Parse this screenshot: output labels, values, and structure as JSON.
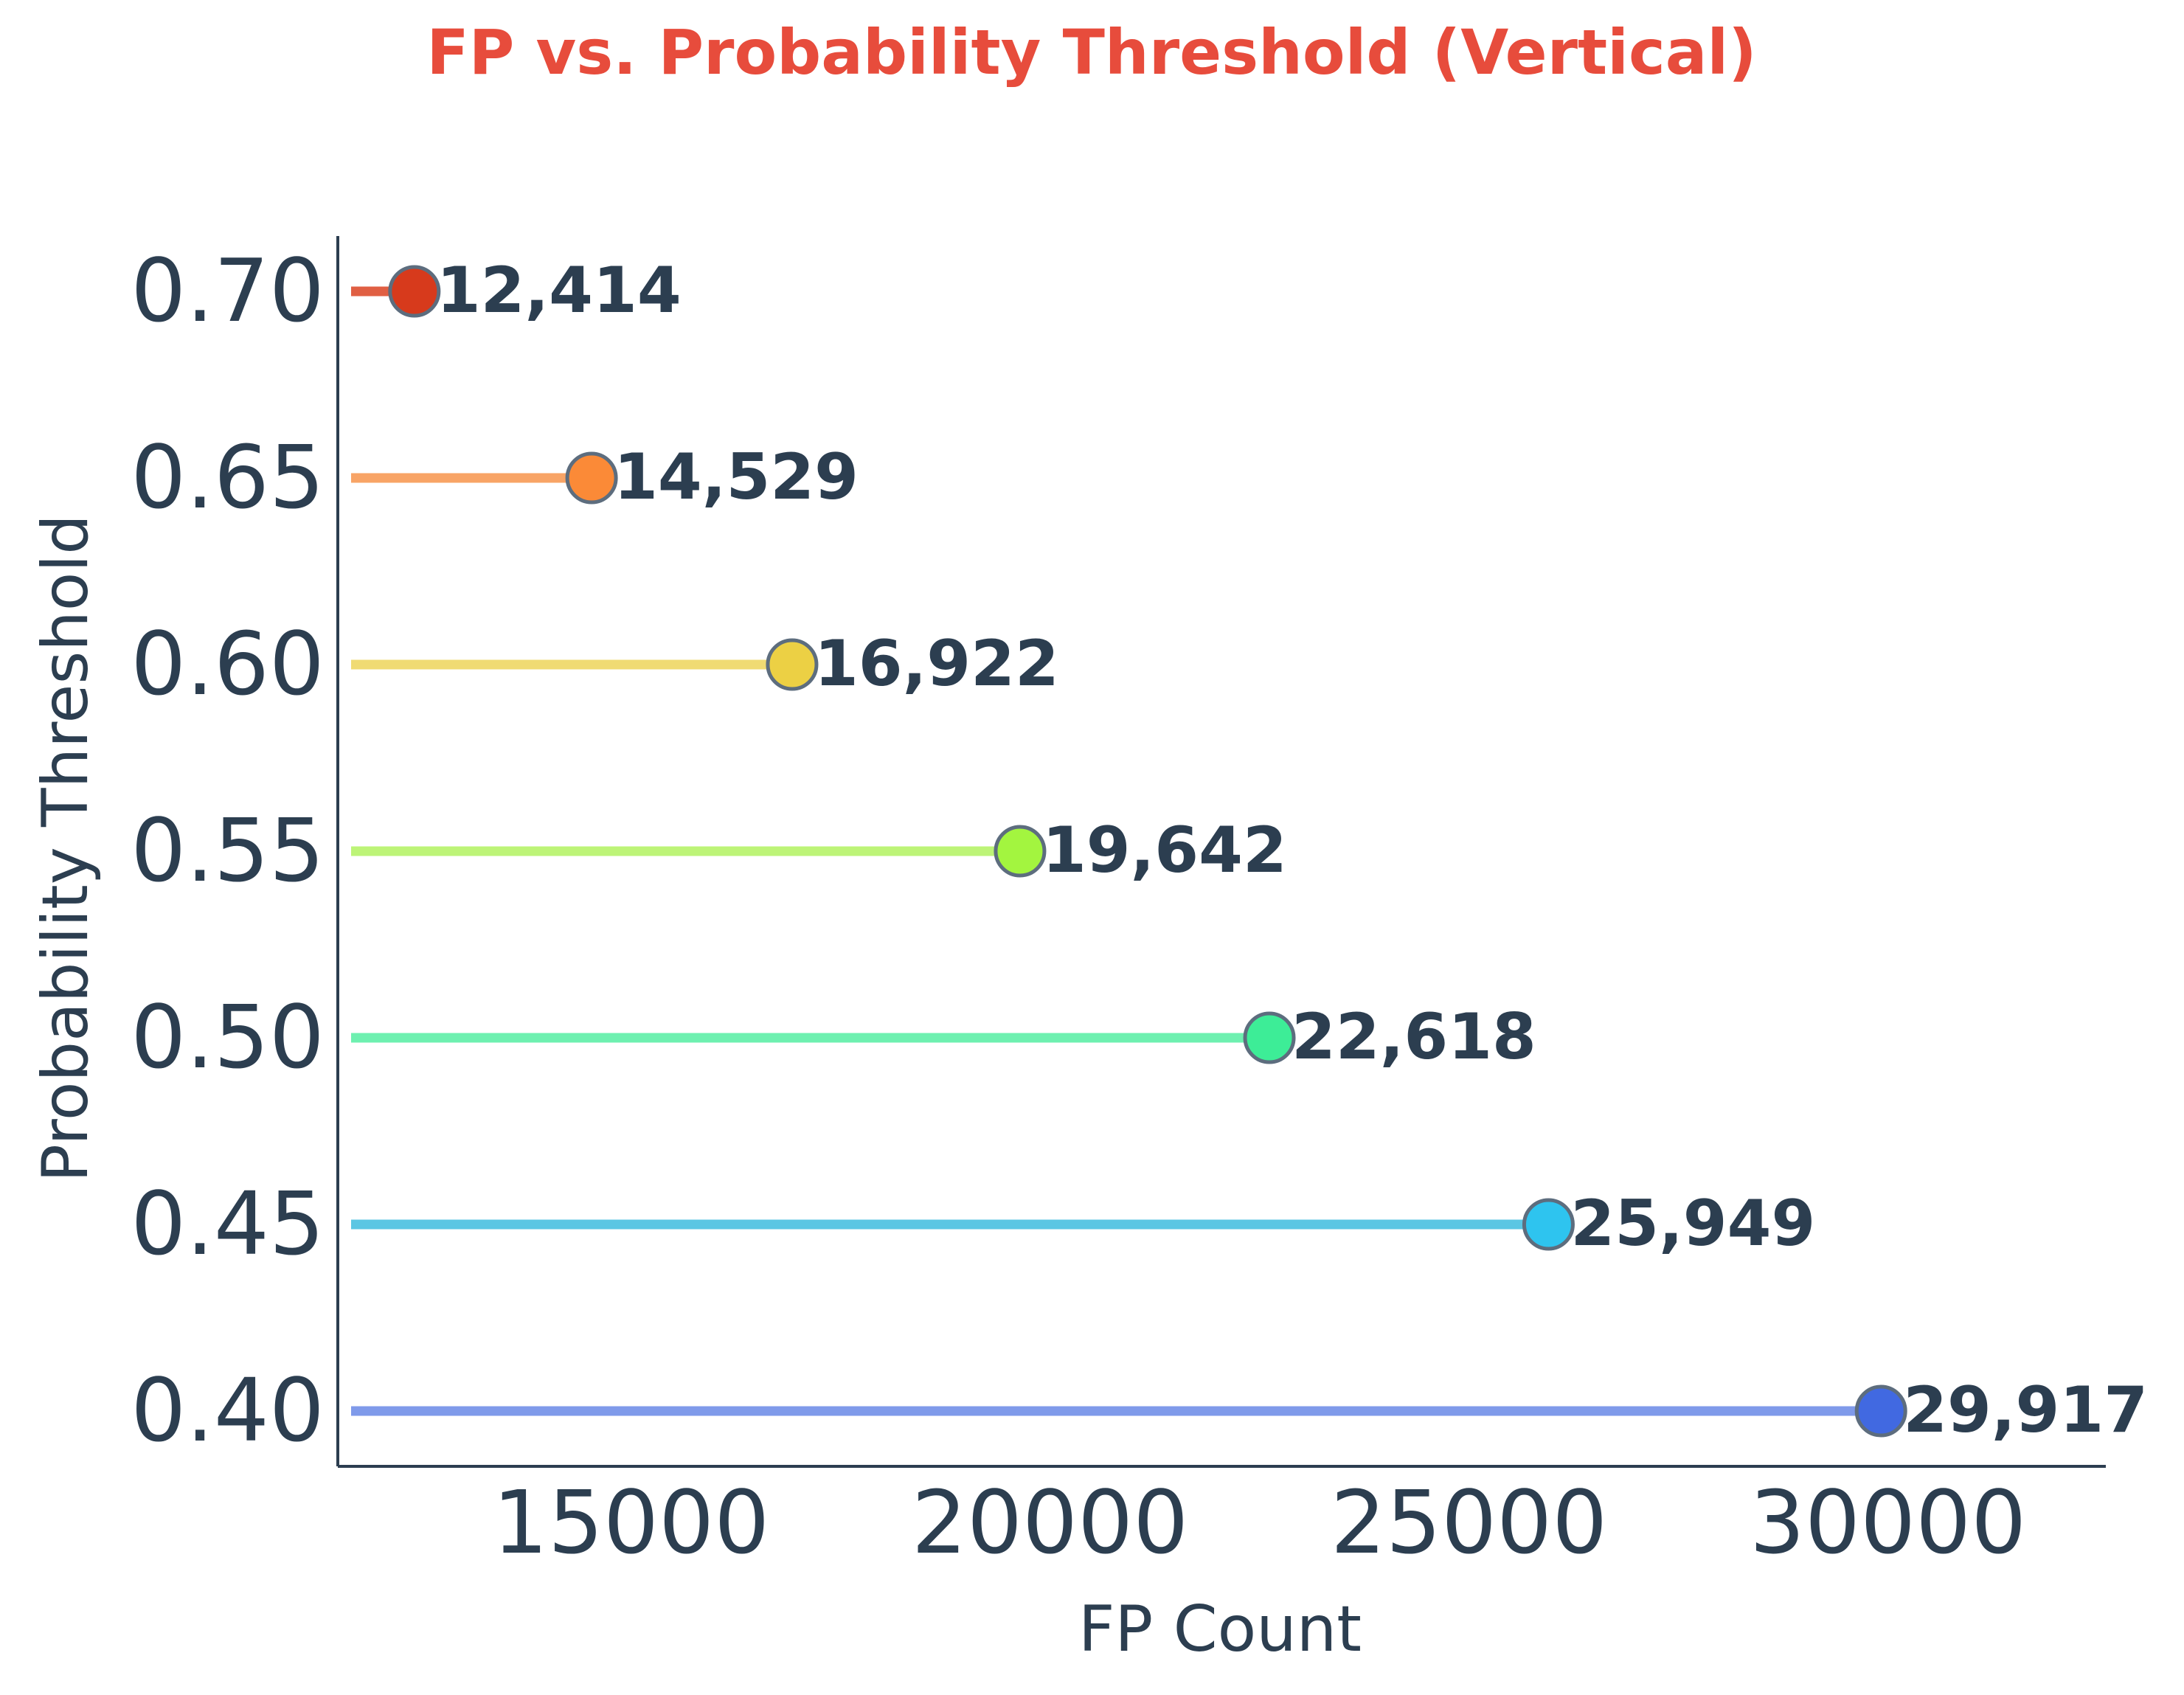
{
  "chart_data": {
    "type": "lollipop",
    "orientation": "horizontal",
    "title": "FP vs. Probability Threshold (Vertical)",
    "xlabel": "FP Count",
    "ylabel": "Probability Threshold",
    "x_ticks": [
      15000,
      20000,
      25000,
      30000
    ],
    "x_tick_labels": [
      "15000",
      "20000",
      "25000",
      "30000"
    ],
    "y_tick_labels": [
      "0.40",
      "0.45",
      "0.50",
      "0.55",
      "0.60",
      "0.65",
      "0.70"
    ],
    "xlim": [
      11500,
      32600
    ],
    "grid": false,
    "legend": "none",
    "points": [
      {
        "threshold": 0.4,
        "label": "0.40",
        "fp": 29917,
        "fp_label": "29,917",
        "color": "#4169e1",
        "line_color": "#7f9aea"
      },
      {
        "threshold": 0.45,
        "label": "0.45",
        "fp": 25949,
        "fp_label": "25,949",
        "color": "#2ec4ef",
        "line_color": "#5bc6e3"
      },
      {
        "threshold": 0.5,
        "label": "0.50",
        "fp": 22618,
        "fp_label": "22,618",
        "color": "#3ded97",
        "line_color": "#6ef0b0"
      },
      {
        "threshold": 0.55,
        "label": "0.55",
        "fp": 19642,
        "fp_label": "19,642",
        "color": "#a3f53f",
        "line_color": "#bdf477"
      },
      {
        "threshold": 0.6,
        "label": "0.60",
        "fp": 16922,
        "fp_label": "16,922",
        "color": "#ecd044",
        "line_color": "#f0db73"
      },
      {
        "threshold": 0.65,
        "label": "0.65",
        "fp": 14529,
        "fp_label": "14,529",
        "color": "#fb8a37",
        "line_color": "#f8a466"
      },
      {
        "threshold": 0.7,
        "label": "0.70",
        "fp": 12414,
        "fp_label": "12,414",
        "color": "#d73a1c",
        "line_color": "#e05f43"
      }
    ],
    "axis_color": "#2c3e50",
    "marker_edge_color": "#5d6d7e"
  }
}
